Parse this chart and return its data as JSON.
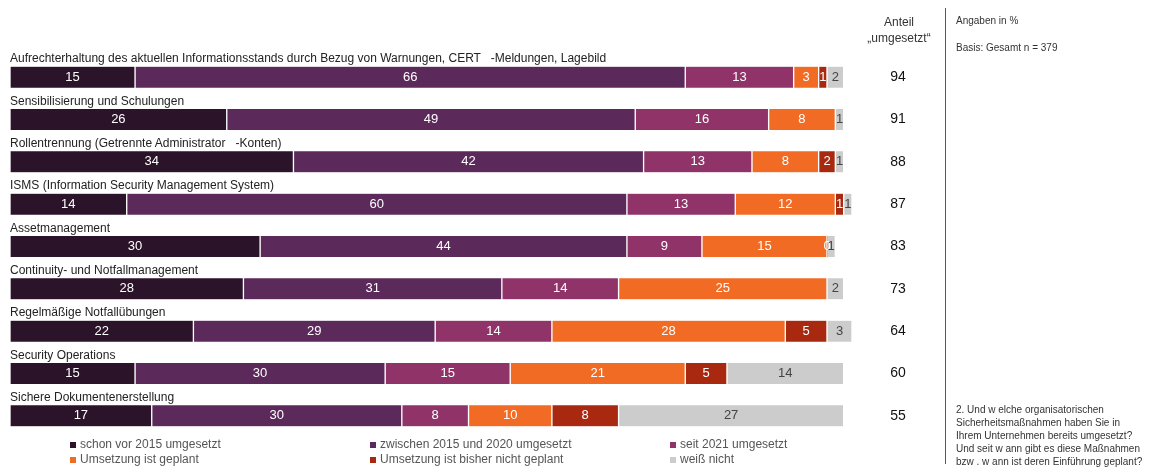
{
  "chart_data": {
    "type": "bar",
    "orientation": "horizontal",
    "stacked": true,
    "data_labels": true,
    "legend": "bottom",
    "tick_labels": false,
    "categories": [
      "Aufrechterhaltung des aktuellen Informationsstands durch Bezug von Warnungen, CERT   -Meldungen, Lagebild",
      "Sensibilisierung und Schulungen",
      "Rollentrennung (Getrennte Administrator   -Konten)",
      "ISMS (Information Security Management System)",
      "Assetmanagement",
      "Continuity- und Notfallmanagement",
      "Regelmäßige Notfallübungen",
      "Security Operations",
      "Sichere Dokumentenerstellung"
    ],
    "series": [
      {
        "name": "schon vor 2015 umgesetzt",
        "color": "#2b1329",
        "values": [
          15,
          26,
          34,
          14,
          30,
          28,
          22,
          15,
          17
        ]
      },
      {
        "name": "zwischen 2015 und 2020 umgesetzt",
        "color": "#5c2a5a",
        "values": [
          66,
          49,
          42,
          60,
          44,
          31,
          29,
          30,
          30
        ]
      },
      {
        "name": "seit 2021 umgesetzt",
        "color": "#8f3368",
        "values": [
          13,
          16,
          13,
          13,
          9,
          14,
          14,
          15,
          8
        ]
      },
      {
        "name": "Umsetzung ist geplant",
        "color": "#f26b24",
        "values": [
          3,
          8,
          8,
          12,
          15,
          25,
          28,
          21,
          10
        ]
      },
      {
        "name": "Umsetzung ist bisher nicht geplant",
        "color": "#a8290f",
        "values": [
          1,
          null,
          2,
          1,
          0,
          null,
          5,
          5,
          8
        ]
      },
      {
        "name": "weiß nicht",
        "color": "#cccccc",
        "values": [
          2,
          1,
          1,
          1,
          1,
          2,
          3,
          14,
          27
        ]
      }
    ],
    "annotations": [
      "Anteil „umgesetzt“",
      "Angaben in %",
      "Basis: Gesamt n = 379",
      "2. Und w elche organisatorischen Sicherheitsmaßnahmen haben Sie in Ihrem Unternehmen bereits umgesetzt? Und seit w ann gibt es diese Maßnahmen bzw . w ann ist deren Einführung geplant?",
      "94",
      "91",
      "88",
      "87",
      "83",
      "73",
      "64",
      "60",
      "55"
    ]
  }
}
